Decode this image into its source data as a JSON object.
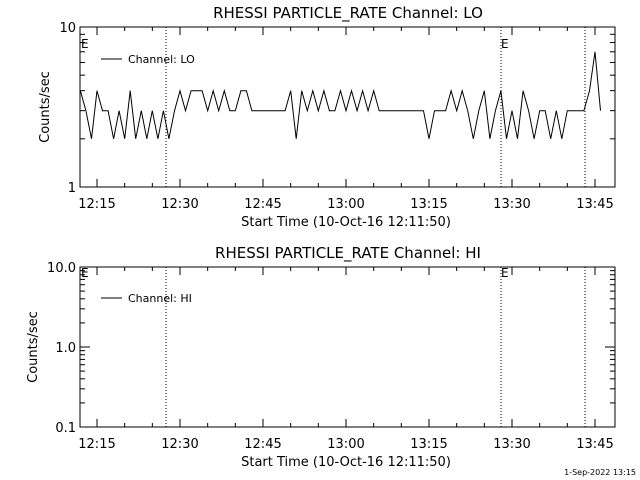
{
  "chart_data": [
    {
      "type": "line",
      "title": "RHESSI PARTICLE_RATE Channel: LO",
      "xlabel": "Start Time (10-Oct-16 12:11:50)",
      "ylabel": "Counts/sec",
      "yscale": "log",
      "ylim": [
        1,
        10
      ],
      "yticks": [
        "1",
        "10"
      ],
      "xlim_minutes": [
        12.17,
        13.78
      ],
      "xticks": [
        "12:15",
        "12:30",
        "12:45",
        "13:00",
        "13:15",
        "13:30",
        "13:45"
      ],
      "legend": "top-left",
      "grid": false,
      "event_lines": [
        "12:28",
        "13:30",
        "13:45.5"
      ],
      "event_markers": [
        {
          "label": "E",
          "at": "12:11:50"
        },
        {
          "label": "E",
          "at": "13:30"
        }
      ],
      "series": [
        {
          "name": "Channel: LO",
          "x": [
            "12:12",
            "12:13",
            "12:14",
            "12:15",
            "12:16",
            "12:17",
            "12:18",
            "12:19",
            "12:20",
            "12:21",
            "12:22",
            "12:23",
            "12:24",
            "12:25",
            "12:26",
            "12:27",
            "12:28",
            "12:29",
            "12:30",
            "12:31",
            "12:32",
            "12:33",
            "12:34",
            "12:35",
            "12:36",
            "12:37",
            "12:38",
            "12:39",
            "12:40",
            "12:41",
            "12:42",
            "12:43",
            "12:44",
            "12:45",
            "12:46",
            "12:47",
            "12:48",
            "12:49",
            "12:50",
            "12:51",
            "12:52",
            "12:53",
            "12:54",
            "12:55",
            "12:56",
            "12:57",
            "12:58",
            "12:59",
            "13:00",
            "13:01",
            "13:02",
            "13:03",
            "13:04",
            "13:05",
            "13:06",
            "13:07",
            "13:08",
            "13:09",
            "13:10",
            "13:11",
            "13:12",
            "13:13",
            "13:14",
            "13:15",
            "13:16",
            "13:17",
            "13:18",
            "13:19",
            "13:20",
            "13:21",
            "13:22",
            "13:23",
            "13:24",
            "13:25",
            "13:26",
            "13:27",
            "13:28",
            "13:29",
            "13:30",
            "13:31",
            "13:32",
            "13:33",
            "13:34",
            "13:35",
            "13:36",
            "13:37",
            "13:38",
            "13:39",
            "13:40",
            "13:41",
            "13:42",
            "13:43",
            "13:44",
            "13:45",
            "13:46"
          ],
          "values": [
            4,
            3,
            2,
            4,
            3,
            3,
            2,
            3,
            2,
            4,
            2,
            3,
            2,
            3,
            2,
            3,
            2,
            3,
            4,
            3,
            4,
            4,
            4,
            3,
            4,
            3,
            4,
            3,
            3,
            4,
            4,
            3,
            3,
            3,
            3,
            3,
            3,
            3,
            4,
            2,
            4,
            3,
            4,
            3,
            4,
            3,
            3,
            4,
            3,
            4,
            3,
            4,
            3,
            4,
            3,
            3,
            3,
            3,
            3,
            3,
            3,
            3,
            3,
            2,
            3,
            3,
            3,
            4,
            3,
            4,
            3,
            2,
            3,
            4,
            2,
            3,
            4,
            2,
            3,
            2,
            4,
            3,
            2,
            3,
            3,
            2,
            3,
            2,
            3,
            3,
            3,
            3,
            4,
            7,
            3
          ]
        }
      ]
    },
    {
      "type": "line",
      "title": "RHESSI PARTICLE_RATE Channel: HI",
      "xlabel": "Start Time (10-Oct-16 12:11:50)",
      "ylabel": "Counts/sec",
      "yscale": "log",
      "ylim": [
        0.1,
        10
      ],
      "yticks": [
        "0.1",
        "1.0",
        "10.0"
      ],
      "xlim_minutes": [
        12.17,
        13.78
      ],
      "xticks": [
        "12:15",
        "12:30",
        "12:45",
        "13:00",
        "13:15",
        "13:30",
        "13:45"
      ],
      "legend": "top-left",
      "grid": false,
      "event_lines": [
        "12:28",
        "13:30",
        "13:45.5"
      ],
      "event_markers": [
        {
          "label": "E",
          "at": "12:11:50"
        },
        {
          "label": "E",
          "at": "13:30"
        }
      ],
      "series": [
        {
          "name": "Channel: HI",
          "x": [],
          "values": []
        }
      ]
    }
  ],
  "footer": {
    "timestamp": "1-Sep-2022 13:15"
  }
}
